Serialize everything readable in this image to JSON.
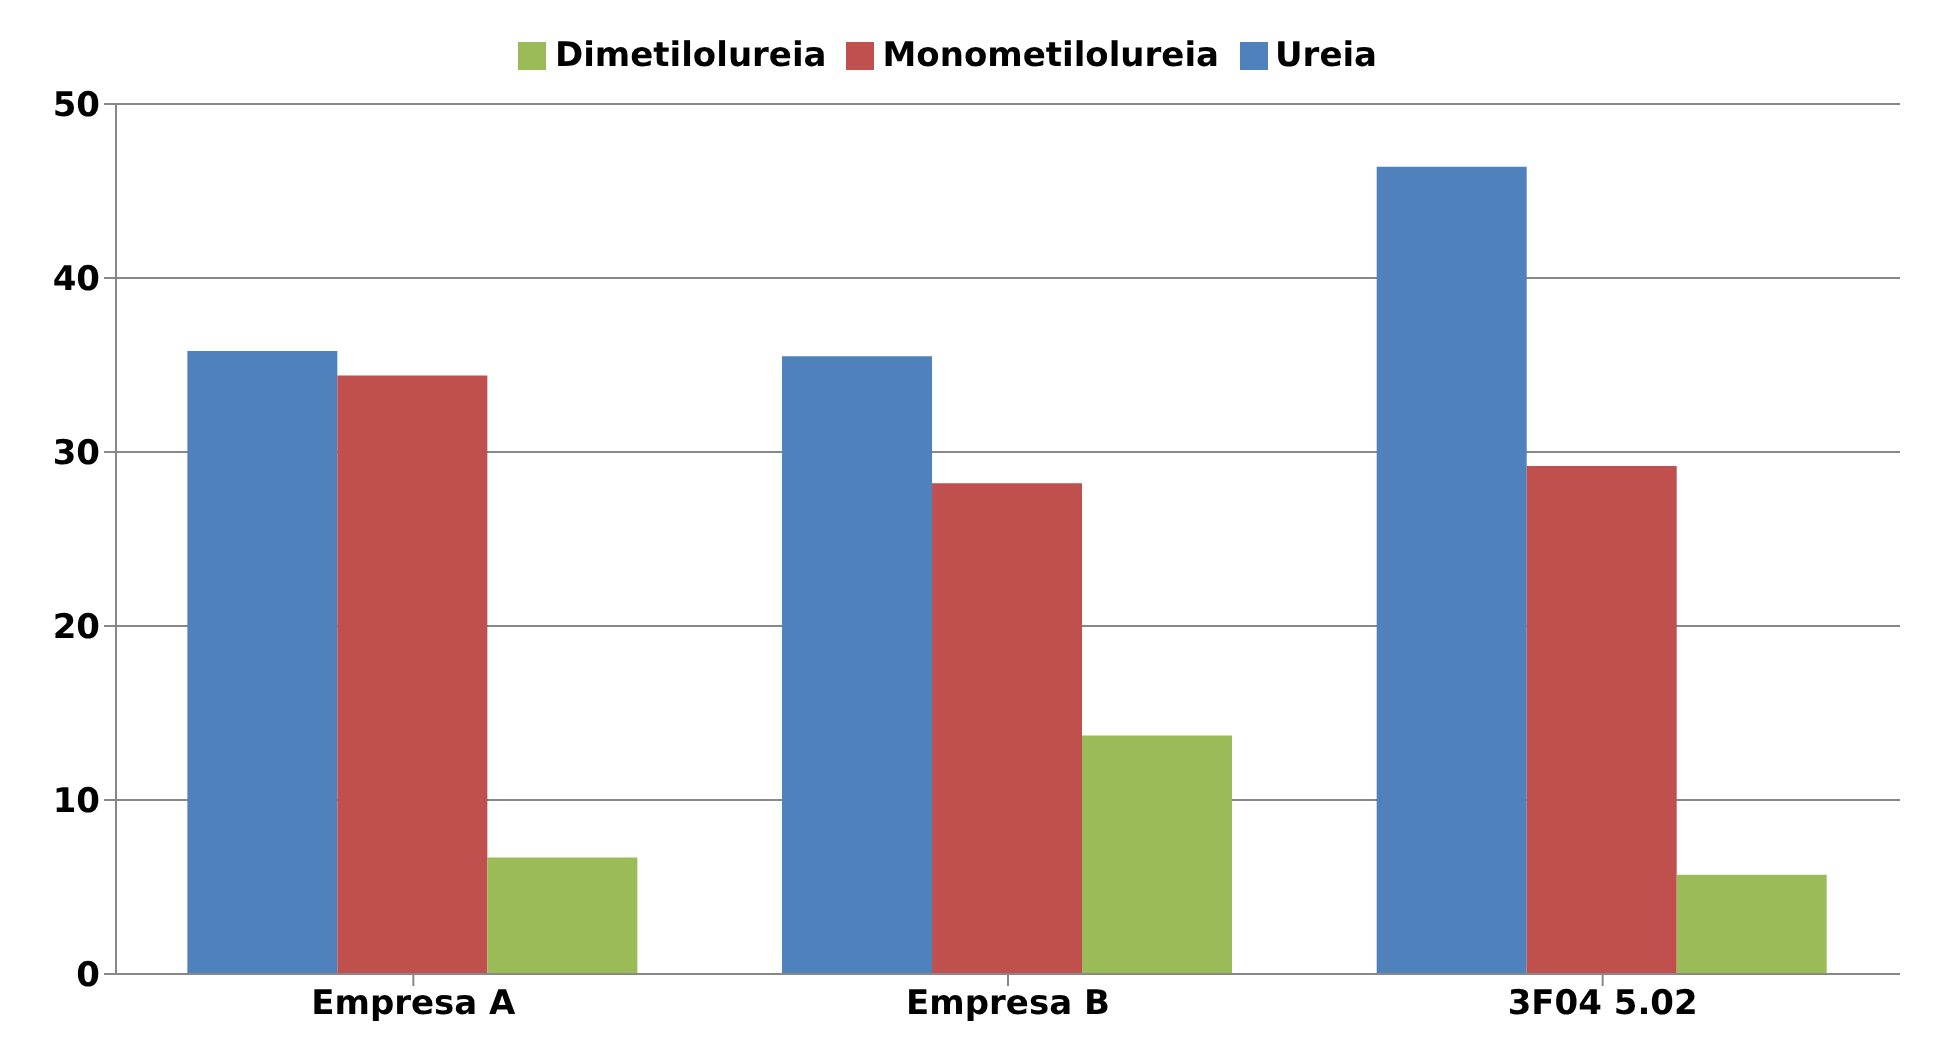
{
  "chart_data": {
    "type": "bar",
    "categories": [
      "Empresa A",
      "Empresa B",
      "3F04 5.02"
    ],
    "series": [
      {
        "name": "Ureia",
        "color": "#4f81bd",
        "values": [
          35.8,
          35.5,
          46.4
        ]
      },
      {
        "name": "Monometilolureia",
        "color": "#c0504d",
        "values": [
          34.4,
          28.2,
          29.2
        ]
      },
      {
        "name": "Dimetilolureia",
        "color": "#9bbb59",
        "values": [
          6.7,
          13.7,
          5.7
        ]
      }
    ],
    "ylim": [
      0,
      50
    ],
    "yticks": [
      0,
      10,
      20,
      30,
      40,
      50
    ],
    "grid": "y",
    "legend": "top"
  }
}
